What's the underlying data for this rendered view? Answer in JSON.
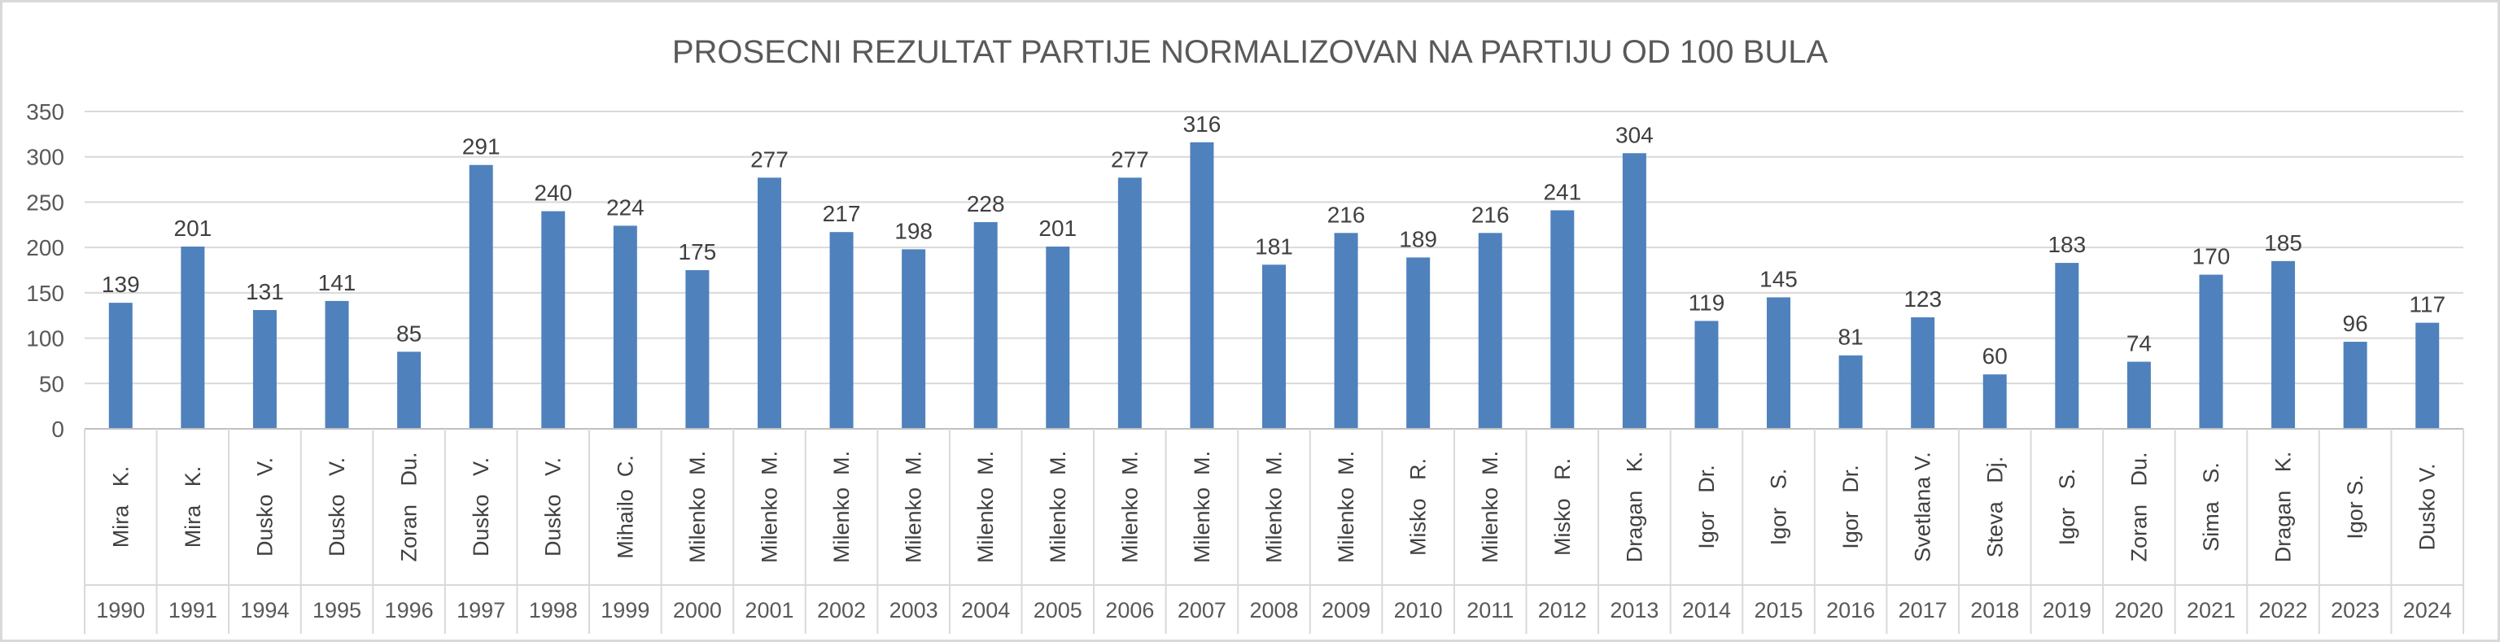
{
  "chart_data": {
    "type": "bar",
    "title": "PROSECNI REZULTAT PARTIJE NORMALIZOVAN NA PARTIJU OD 100 BULA",
    "xlabel": "",
    "ylabel": "",
    "ylim": [
      0,
      350
    ],
    "yticks": [
      0,
      50,
      100,
      150,
      200,
      250,
      300,
      350
    ],
    "grid": true,
    "legend": "none",
    "bar_color": "#4f81bd",
    "categories": [
      {
        "name": "Mira   K.",
        "year": "1990"
      },
      {
        "name": "Mira   K.",
        "year": "1991"
      },
      {
        "name": "Dusko   V.",
        "year": "1994"
      },
      {
        "name": "Dusko   V.",
        "year": "1995"
      },
      {
        "name": "Zoran   Du.",
        "year": "1996"
      },
      {
        "name": "Dusko   V.",
        "year": "1997"
      },
      {
        "name": "Dusko   V.",
        "year": "1998"
      },
      {
        "name": "Mihailo  C.",
        "year": "1999"
      },
      {
        "name": "Milenko  M.",
        "year": "2000"
      },
      {
        "name": "Milenko  M.",
        "year": "2001"
      },
      {
        "name": "Milenko  M.",
        "year": "2002"
      },
      {
        "name": "Milenko  M.",
        "year": "2003"
      },
      {
        "name": "Milenko  M.",
        "year": "2004"
      },
      {
        "name": "Milenko  M.",
        "year": "2005"
      },
      {
        "name": "Milenko  M.",
        "year": "2006"
      },
      {
        "name": "Milenko  M.",
        "year": "2007"
      },
      {
        "name": "Milenko  M.",
        "year": "2008"
      },
      {
        "name": "Milenko  M.",
        "year": "2009"
      },
      {
        "name": "Misko   R.",
        "year": "2010"
      },
      {
        "name": "Milenko  M.",
        "year": "2011"
      },
      {
        "name": "Misko   R.",
        "year": "2012"
      },
      {
        "name": "Dragan   K.",
        "year": "2013"
      },
      {
        "name": "Igor   Dr.",
        "year": "2014"
      },
      {
        "name": "Igor   S.",
        "year": "2015"
      },
      {
        "name": "Igor   Dr.",
        "year": "2016"
      },
      {
        "name": "Svetlana V.",
        "year": "2017"
      },
      {
        "name": "Steva   Dj.",
        "year": "2018"
      },
      {
        "name": "Igor   S.",
        "year": "2019"
      },
      {
        "name": "Zoran   Du.",
        "year": "2020"
      },
      {
        "name": "Sima   S.",
        "year": "2021"
      },
      {
        "name": "Dragan   K.",
        "year": "2022"
      },
      {
        "name": "Igor S.",
        "year": "2023"
      },
      {
        "name": "Dusko V.",
        "year": "2024"
      }
    ],
    "values": [
      139,
      201,
      131,
      141,
      85,
      291,
      240,
      224,
      175,
      277,
      217,
      198,
      228,
      201,
      277,
      316,
      181,
      216,
      189,
      216,
      241,
      304,
      119,
      145,
      81,
      123,
      60,
      183,
      74,
      170,
      185,
      96,
      117
    ]
  }
}
